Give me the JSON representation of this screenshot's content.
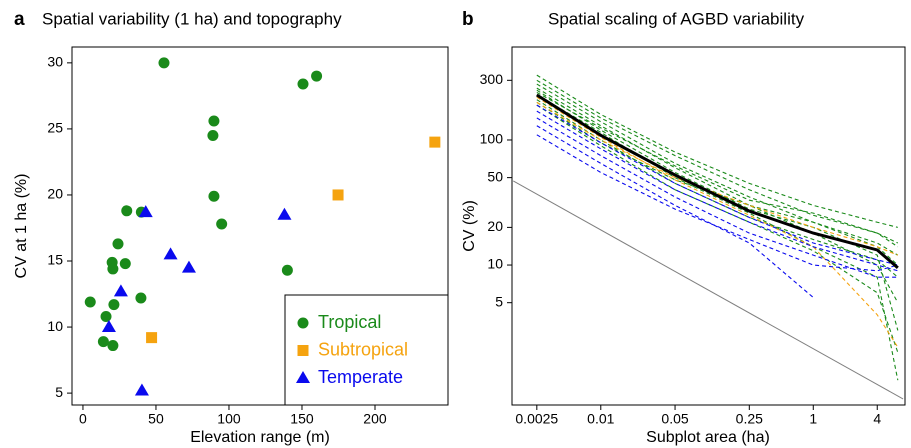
{
  "chart_data": [
    {
      "type": "scatter",
      "panel_label": "a",
      "title": "Spatial variability (1 ha) and topography",
      "x_label": "Elevation range (m)",
      "y_label": "CV at 1 ha (%)",
      "xlim": [
        -7.5,
        250
      ],
      "ylim": [
        4.1,
        31.2
      ],
      "xticks": [
        0,
        50,
        100,
        150,
        200
      ],
      "yticks": [
        5,
        10,
        15,
        20,
        25,
        30
      ],
      "legend": "lower right",
      "series": [
        {
          "name": "Tropical",
          "color": "#1a8a1a",
          "marker": "circle",
          "x": [
            55.5,
            150.7,
            160,
            89.7,
            89,
            89.7,
            95,
            30,
            40,
            24,
            20,
            29,
            20.5,
            140,
            5,
            21.2,
            39.7,
            15.8,
            14,
            20.5
          ],
          "values": [
            30,
            28.4,
            29,
            25.6,
            24.5,
            19.9,
            17.8,
            18.8,
            18.7,
            16.3,
            14.9,
            14.8,
            14.4,
            14.3,
            11.9,
            11.7,
            12.2,
            10.8,
            8.9,
            8.6
          ]
        },
        {
          "name": "Subtropical",
          "color": "#f5a30f",
          "marker": "square",
          "x": [
            47,
            174.7,
            241
          ],
          "values": [
            9.2,
            20,
            24
          ]
        },
        {
          "name": "Temperate",
          "color": "#0a0aee",
          "marker": "triangle",
          "x": [
            43,
            60,
            72.6,
            26,
            17.8,
            40.4,
            138
          ],
          "values": [
            18.7,
            15.5,
            14.5,
            12.7,
            10,
            5.2,
            18.5
          ]
        }
      ]
    },
    {
      "type": "line",
      "panel_label": "b",
      "title": "Spatial scaling of AGBD variability",
      "x_label": "Subplot area (ha)",
      "y_label": "CV (%)",
      "log_x": true,
      "log_y": true,
      "xlim": [
        0.00146,
        7.3
      ],
      "ylim": [
        0.76,
        554
      ],
      "xticks": [
        0.0025,
        0.01,
        0.05,
        0.25,
        1,
        4
      ],
      "yticks": [
        5,
        10,
        20,
        50,
        100,
        300
      ],
      "x": [
        0.0025,
        0.01,
        0.05,
        0.25,
        1,
        4,
        6.25
      ],
      "series": [
        {
          "color": "#1a8a1a",
          "line_style": "dashed",
          "values": [
            330,
            160,
            80,
            45,
            30,
            22,
            20
          ]
        },
        {
          "color": "#1a8a1a",
          "line_style": "dashed",
          "values": [
            300,
            150,
            75,
            40,
            25,
            18,
            14
          ]
        },
        {
          "color": "#1a8a1a",
          "line_style": "dashed",
          "values": [
            280,
            140,
            65,
            35,
            22,
            14,
            10
          ]
        },
        {
          "color": "#1a8a1a",
          "line_style": "dashed",
          "values": [
            260,
            130,
            60,
            30,
            18,
            10,
            5
          ]
        },
        {
          "color": "#1a8a1a",
          "line_style": "dashed",
          "values": [
            250,
            120,
            55,
            28,
            20,
            12,
            3
          ]
        },
        {
          "color": "#1a8a1a",
          "line_style": "dashed",
          "values": [
            230,
            115,
            50,
            26,
            14,
            8,
            1.2
          ]
        },
        {
          "color": "#1a8a1a",
          "line_style": "dashed",
          "values": [
            210,
            100,
            45,
            24,
            16,
            11,
            8
          ]
        },
        {
          "color": "#1a8a1a",
          "line_style": "dashed",
          "values": [
            200,
            95,
            48,
            30,
            22,
            15,
            12
          ]
        },
        {
          "color": "#1a8a1a",
          "line_style": "dashed",
          "values": [
            190,
            90,
            40,
            22,
            13,
            6,
            2
          ]
        },
        {
          "color": "#1a8a1a",
          "line_style": "dashed",
          "values": [
            240,
            125,
            62,
            33,
            26,
            18,
            15
          ]
        },
        {
          "color": "#f5a30f",
          "line_style": "dashed",
          "values": [
            220,
            105,
            48,
            25,
            14,
            4,
            2.2
          ]
        },
        {
          "color": "#f5a30f",
          "line_style": "dashed",
          "values": [
            200,
            100,
            50,
            30,
            20,
            14,
            12
          ]
        },
        {
          "color": "#0a0aee",
          "line_style": "dashed",
          "values": [
            130,
            65,
            30,
            15,
            5.5,
            null,
            null
          ]
        },
        {
          "color": "#0a0aee",
          "line_style": "dashed",
          "values": [
            150,
            75,
            35,
            18,
            12,
            8,
            8
          ]
        },
        {
          "color": "#0a0aee",
          "line_style": "dashed",
          "values": [
            170,
            85,
            40,
            22,
            14,
            10,
            9
          ]
        },
        {
          "color": "#0a0aee",
          "line_style": "dashed",
          "values": [
            110,
            55,
            28,
            16,
            10,
            9,
            10
          ]
        },
        {
          "color": "#0a0aee",
          "line_style": "dashed",
          "values": [
            190,
            95,
            45,
            24,
            15,
            11,
            10
          ]
        },
        {
          "color": "#000000",
          "line_style": "solid",
          "line_width": 3,
          "values": [
            229,
            109,
            52.5,
            27,
            18,
            13.2,
            9.5
          ]
        },
        {
          "color": "#808080",
          "line_style": "solid",
          "line_width": 1,
          "x": [
            0.0015,
            7
          ],
          "values": [
            47,
            0.85
          ]
        }
      ]
    }
  ]
}
